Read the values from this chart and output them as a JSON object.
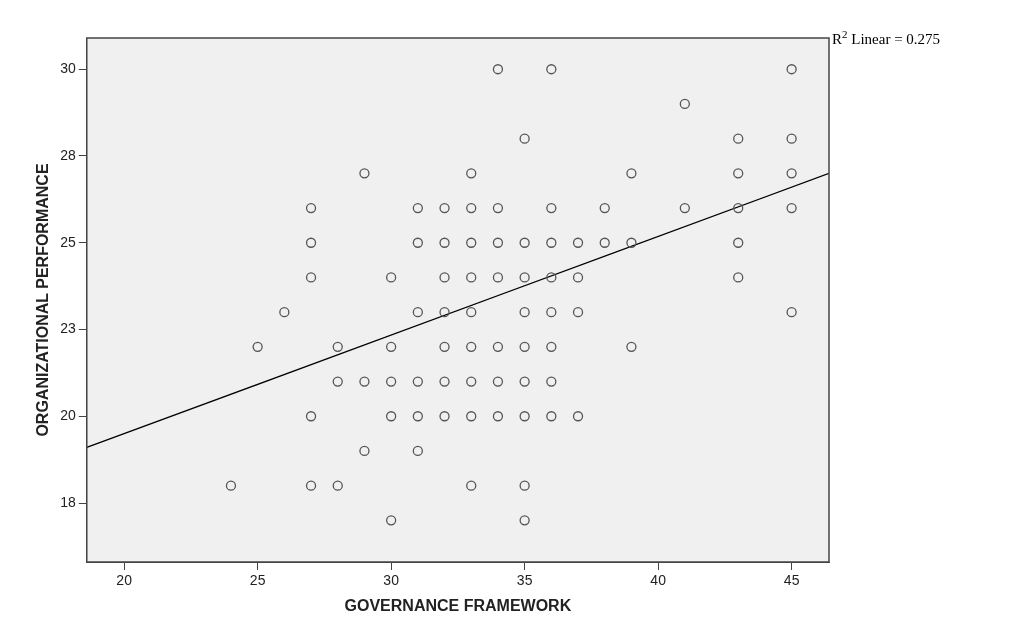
{
  "chart_data": {
    "type": "scatter",
    "xlabel": "GOVERNANCE FRAMEWORK",
    "ylabel": "ORGANIZATIONAL PERFORMANCE",
    "annotations": [
      "R$^{2}$ Linear = 0.275"
    ],
    "xlim": [
      18.6,
      46.4
    ],
    "xticks": [
      20,
      25,
      30,
      35,
      40,
      45
    ],
    "ylim": [
      15.8,
      30.9
    ],
    "yticks": [
      {
        "value": 17.5,
        "label": "18"
      },
      20,
      {
        "value": 22.5,
        "label": "23"
      },
      25,
      {
        "value": 27.5,
        "label": "28"
      },
      30
    ],
    "grid": false,
    "legend": false,
    "marker": "circle",
    "series": [
      {
        "color": "#555555",
        "x": [
          34,
          36,
          45,
          41,
          35,
          43,
          45,
          29,
          33,
          39,
          43,
          45,
          27,
          31,
          32,
          33,
          34,
          36,
          38,
          41,
          43,
          45,
          27,
          31,
          32,
          33,
          34,
          35,
          36,
          37,
          38,
          39,
          43,
          27,
          30,
          32,
          33,
          34,
          35,
          36,
          37,
          43,
          26,
          31,
          32,
          33,
          35,
          36,
          37,
          45,
          25,
          28,
          30,
          32,
          33,
          34,
          35,
          36,
          39,
          28,
          29,
          30,
          31,
          32,
          33,
          34,
          35,
          36,
          27,
          30,
          31,
          32,
          33,
          34,
          35,
          36,
          37,
          29,
          31,
          24,
          27,
          28,
          33,
          35,
          30,
          35
        ],
        "values": [
          30,
          30,
          30,
          29,
          28,
          28,
          28,
          27,
          27,
          27,
          27,
          27,
          26,
          26,
          26,
          26,
          26,
          26,
          26,
          26,
          26,
          26,
          25,
          25,
          25,
          25,
          25,
          25,
          25,
          25,
          25,
          25,
          25,
          24,
          24,
          24,
          24,
          24,
          24,
          24,
          24,
          24,
          23,
          23,
          23,
          23,
          23,
          23,
          23,
          23,
          22,
          22,
          22,
          22,
          22,
          22,
          22,
          22,
          22,
          21,
          21,
          21,
          21,
          21,
          21,
          21,
          21,
          21,
          20,
          20,
          20,
          20,
          20,
          20,
          20,
          20,
          20,
          19,
          19,
          18,
          18,
          18,
          18,
          18,
          17,
          17
        ]
      },
      {
        "type": "line",
        "color": "#000000",
        "marker": "none",
        "line_style": "solid",
        "x": [
          18.6,
          46.4
        ],
        "values": [
          19.1,
          27.0
        ]
      }
    ]
  }
}
